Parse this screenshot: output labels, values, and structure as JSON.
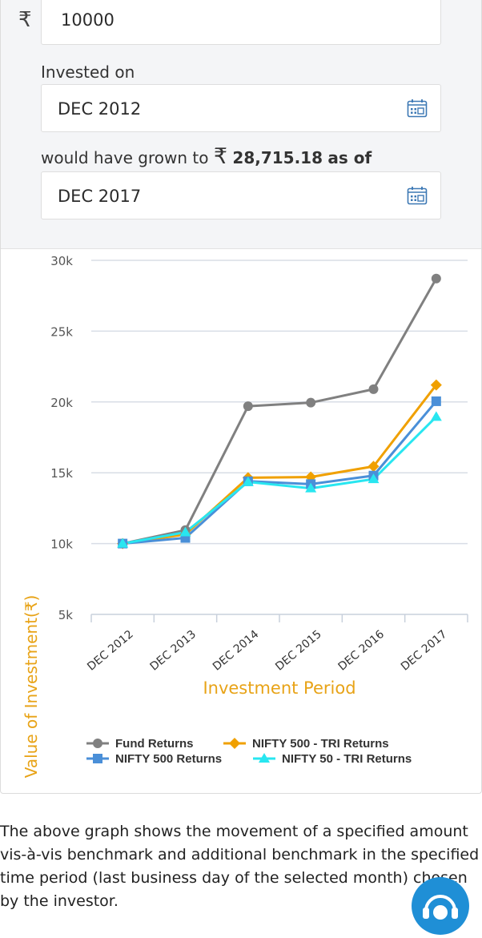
{
  "form": {
    "currency_symbol": "₹",
    "amount": "10000",
    "invested_on_label": "Invested on",
    "invested_on_value": "DEC 2012",
    "grown_prefix": "would have grown to",
    "grown_currency": "₹",
    "grown_amount": "28,715.18",
    "grown_suffix": "as of",
    "as_of_value": "DEC 2017",
    "calendar_icon": "calendar-icon"
  },
  "chart_data": {
    "type": "line",
    "title": "",
    "xlabel": "Investment Period",
    "ylabel": "Value of Investment(₹)",
    "categories": [
      "DEC 2012",
      "DEC 2013",
      "DEC 2014",
      "DEC 2015",
      "DEC 2016",
      "DEC 2017"
    ],
    "ylim": [
      5000,
      30000
    ],
    "yticks": [
      {
        "value": 30000,
        "label": "30k"
      },
      {
        "value": 25000,
        "label": "25k"
      },
      {
        "value": 20000,
        "label": "20k"
      },
      {
        "value": 15000,
        "label": "15k"
      },
      {
        "value": 10000,
        "label": "10k"
      },
      {
        "value": 5000,
        "label": "5k"
      }
    ],
    "grid": true,
    "legend_position": "bottom",
    "series": [
      {
        "name": "Fund Returns",
        "color": "#808080",
        "marker": "circle",
        "values": [
          10000,
          10950,
          19700,
          19950,
          20900,
          28715
        ]
      },
      {
        "name": "NIFTY 500 - TRI Returns",
        "color": "#f0a000",
        "marker": "diamond",
        "values": [
          10000,
          10650,
          14650,
          14700,
          15450,
          21200
        ]
      },
      {
        "name": "NIFTY 500 Returns",
        "color": "#4a8fd8",
        "marker": "square",
        "values": [
          10000,
          10400,
          14400,
          14200,
          14800,
          20050
        ]
      },
      {
        "name": "NIFTY 50 - TRI Returns",
        "color": "#28e6f0",
        "marker": "triangle",
        "values": [
          10000,
          10800,
          14350,
          13900,
          14550,
          18950
        ]
      }
    ]
  },
  "note": {
    "text": "The above graph shows the movement of a specified amount vis-à-vis benchmark and additional benchmark in the specified time period (last business day of the selected month) chosen by the investor."
  },
  "help_icon": "chat-help-icon"
}
